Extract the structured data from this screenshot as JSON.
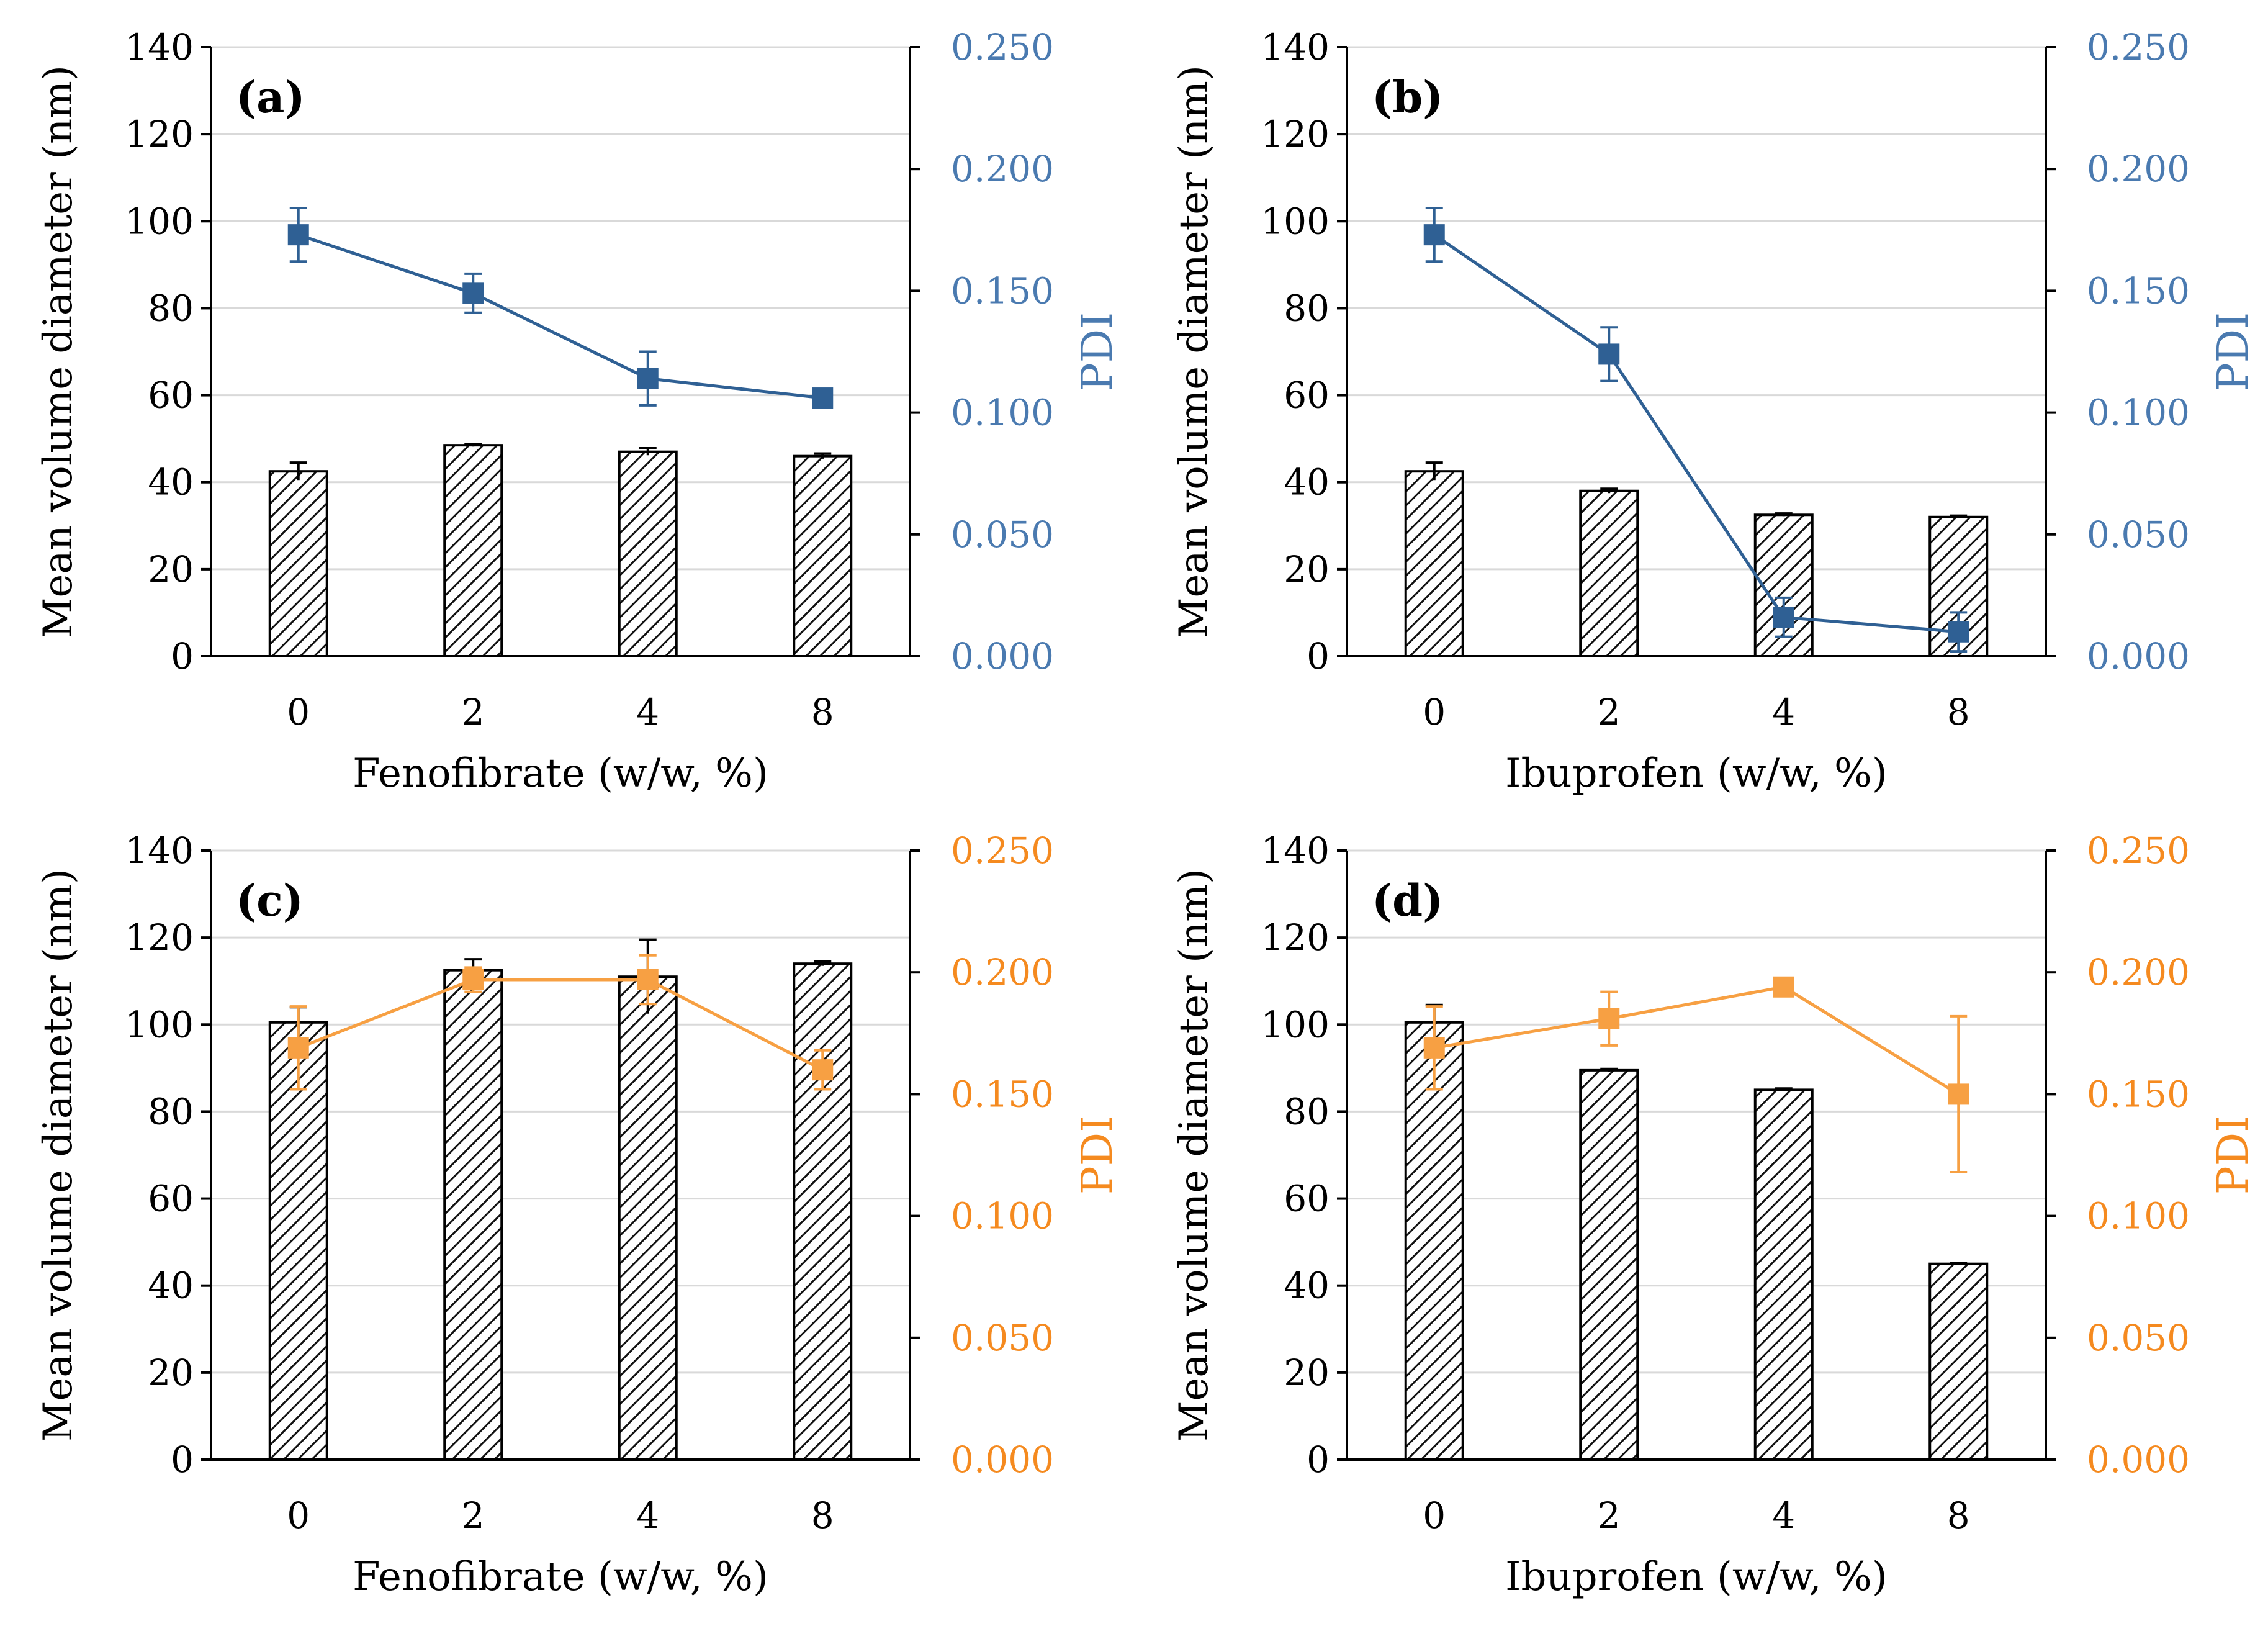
{
  "chart_data": [
    {
      "panel": "(a)",
      "type": "bar",
      "categories": [
        "0",
        "2",
        "4",
        "8"
      ],
      "xlabel": "Fenofibrate (w/w, %)",
      "ylabel": "Mean volume diameter (nm)",
      "y2label": "PDI",
      "ylim": [
        0,
        140
      ],
      "y2lim": [
        0,
        0.25
      ],
      "yticks": [
        "0",
        "20",
        "40",
        "60",
        "80",
        "100",
        "120",
        "140"
      ],
      "y2ticks": [
        "0.000",
        "0.050",
        "0.100",
        "0.150",
        "0.200",
        "0.250"
      ],
      "grid": true,
      "line_color": "#2f6094",
      "axis2_color": "#4a7ab0",
      "series": [
        {
          "name": "Mean volume diameter",
          "axis": "left",
          "kind": "bar",
          "values": [
            42.5,
            48.5,
            47.0,
            46.0
          ],
          "errors": [
            2.0,
            0.3,
            0.8,
            0.6
          ]
        },
        {
          "name": "PDI",
          "axis": "right",
          "kind": "line",
          "values": [
            0.173,
            0.149,
            0.114,
            0.106
          ],
          "errors": [
            0.011,
            0.008,
            0.011,
            0.002
          ]
        }
      ]
    },
    {
      "panel": "(b)",
      "type": "bar",
      "categories": [
        "0",
        "2",
        "4",
        "8"
      ],
      "xlabel": "Ibuprofen (w/w, %)",
      "ylabel": "Mean volume diameter (nm)",
      "y2label": "PDI",
      "ylim": [
        0,
        140
      ],
      "y2lim": [
        0,
        0.25
      ],
      "yticks": [
        "0",
        "20",
        "40",
        "60",
        "80",
        "100",
        "120",
        "140"
      ],
      "y2ticks": [
        "0.000",
        "0.050",
        "0.100",
        "0.150",
        "0.200",
        "0.250"
      ],
      "grid": true,
      "line_color": "#2f6094",
      "axis2_color": "#4a7ab0",
      "series": [
        {
          "name": "Mean volume diameter",
          "axis": "left",
          "kind": "bar",
          "values": [
            42.5,
            38.0,
            32.5,
            32.0
          ],
          "errors": [
            2.0,
            0.5,
            0.3,
            0.3
          ]
        },
        {
          "name": "PDI",
          "axis": "right",
          "kind": "line",
          "values": [
            0.173,
            0.124,
            0.016,
            0.01
          ],
          "errors": [
            0.011,
            0.011,
            0.008,
            0.008
          ]
        }
      ]
    },
    {
      "panel": "(c)",
      "type": "bar",
      "categories": [
        "0",
        "2",
        "4",
        "8"
      ],
      "xlabel": "Fenofibrate (w/w, %)",
      "ylabel": "Mean volume diameter (nm)",
      "y2label": "PDI",
      "ylim": [
        0,
        140
      ],
      "y2lim": [
        0,
        0.25
      ],
      "yticks": [
        "0",
        "20",
        "40",
        "60",
        "80",
        "100",
        "120",
        "140"
      ],
      "y2ticks": [
        "0.000",
        "0.050",
        "0.100",
        "0.150",
        "0.200",
        "0.250"
      ],
      "grid": true,
      "line_color": "#f7a043",
      "axis2_color": "#f58a1f",
      "series": [
        {
          "name": "Mean volume diameter",
          "axis": "left",
          "kind": "bar",
          "values": [
            100.5,
            112.5,
            111.0,
            114.0
          ],
          "errors": [
            3.5,
            2.5,
            8.5,
            0.5
          ]
        },
        {
          "name": "PDI",
          "axis": "right",
          "kind": "line",
          "values": [
            0.169,
            0.197,
            0.197,
            0.16
          ],
          "errors": [
            0.017,
            0.005,
            0.01,
            0.008
          ]
        }
      ]
    },
    {
      "panel": "(d)",
      "type": "bar",
      "categories": [
        "0",
        "2",
        "4",
        "8"
      ],
      "xlabel": "Ibuprofen (w/w, %)",
      "ylabel": "Mean volume diameter (nm)",
      "y2label": "PDI",
      "ylim": [
        0,
        140
      ],
      "y2lim": [
        0,
        0.25
      ],
      "yticks": [
        "0",
        "20",
        "40",
        "60",
        "80",
        "100",
        "120",
        "140"
      ],
      "y2ticks": [
        "0.000",
        "0.050",
        "0.100",
        "0.150",
        "0.200",
        "0.250"
      ],
      "grid": true,
      "line_color": "#f7a043",
      "axis2_color": "#f58a1f",
      "series": [
        {
          "name": "Mean volume diameter",
          "axis": "left",
          "kind": "bar",
          "values": [
            100.5,
            89.5,
            85.0,
            45.0
          ],
          "errors": [
            4.0,
            0.3,
            0.3,
            0.2
          ]
        },
        {
          "name": "PDI",
          "axis": "right",
          "kind": "line",
          "values": [
            0.169,
            0.181,
            0.194,
            0.15
          ],
          "errors": [
            0.017,
            0.011,
            0.002,
            0.032
          ]
        }
      ]
    }
  ]
}
